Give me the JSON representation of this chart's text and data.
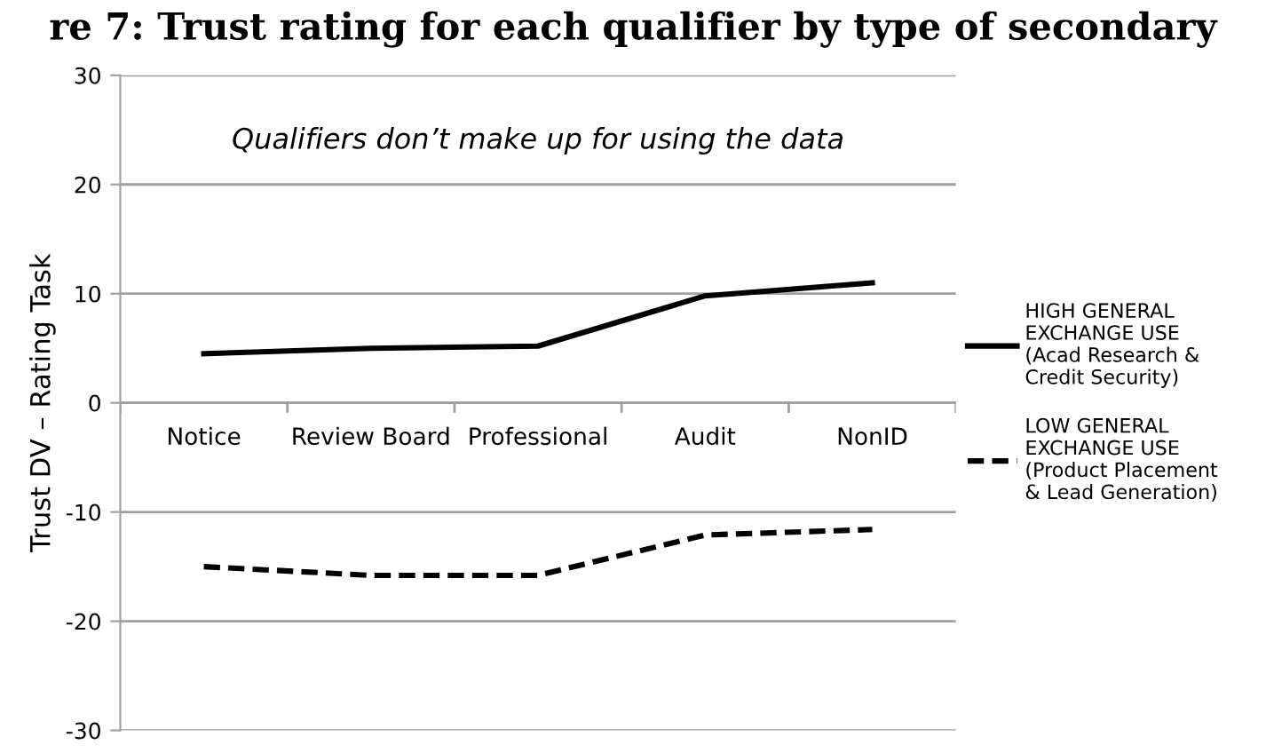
{
  "chart_data": {
    "type": "line",
    "title": "re 7: Trust rating for each qualifier by type of secondary",
    "ylabel": "Trust DV – Rating Task",
    "annotations": [
      "Qualifiers don’t make up for using the data"
    ],
    "categories": [
      "Notice",
      "Review Board",
      "Professional",
      "Audit",
      "NonID"
    ],
    "series": [
      {
        "name": "HIGH GENERAL\nEXCHANGE USE\n(Acad Research &\nCredit Security)",
        "color": "#000000",
        "line_style": "solid",
        "values": [
          4.5,
          5.0,
          5.2,
          9.8,
          11.0
        ]
      },
      {
        "name": "LOW GENERAL\nEXCHANGE USE\n(Product Placement\n& Lead Generation)",
        "color": "#000000",
        "line_style": "dashed",
        "values": [
          -15.0,
          -15.8,
          -15.8,
          -12.1,
          -11.6
        ]
      }
    ],
    "ylim": [
      -30,
      30
    ],
    "yticks": [
      -30,
      -20,
      -10,
      0,
      10,
      20,
      30
    ],
    "grid": "y",
    "legend": "right",
    "marker": "none"
  }
}
